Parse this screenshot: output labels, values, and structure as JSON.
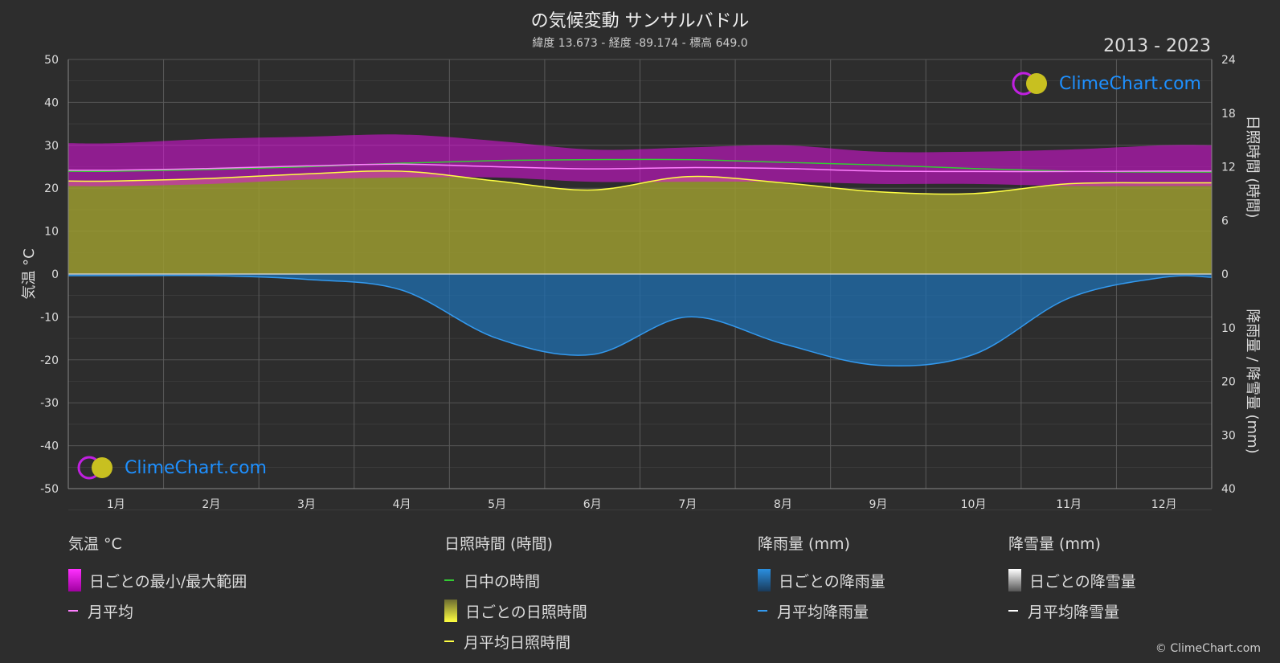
{
  "header": {
    "title": "の気候変動 サンサルバドル",
    "subtitle": "緯度 13.673 - 経度 -89.174 - 標高 649.0",
    "year_range": "2013 - 2023"
  },
  "logo": {
    "text": "ClimeChart.com"
  },
  "copyright": "© ClimeChart.com",
  "colors": {
    "background": "#2d2d2d",
    "temp_range": "#e010e0",
    "temp_avg": "#ff80ff",
    "daylight": "#33cc33",
    "sunshine_fill": "#9b9b30",
    "sunshine_line": "#ffff44",
    "rain_fill": "#1f6fb0",
    "rain_line": "#3399ee",
    "snow_line": "#ffffff",
    "logo": "#1e90ff"
  },
  "chart_data": {
    "type": "line",
    "months": [
      "1月",
      "2月",
      "3月",
      "4月",
      "5月",
      "6月",
      "7月",
      "8月",
      "9月",
      "10月",
      "11月",
      "12月"
    ],
    "y_left": {
      "label": "気温 °C",
      "ylim": [
        -50,
        50
      ],
      "ticks": [
        50,
        40,
        30,
        20,
        10,
        0,
        -10,
        -20,
        -30,
        -40,
        -50
      ]
    },
    "y_right_top": {
      "label": "日照時間 (時間)",
      "ylim": [
        0,
        24
      ],
      "ticks": [
        24,
        18,
        12,
        6,
        0
      ]
    },
    "y_right_bottom": {
      "label": "降雨量 / 降雪量 (mm)",
      "ylim": [
        0,
        40
      ],
      "ticks": [
        0,
        10,
        20,
        30,
        40
      ]
    },
    "series": [
      {
        "name": "日ごとの最小/最大範囲",
        "axis": "temp",
        "type": "band",
        "min": [
          20.5,
          21.0,
          22.0,
          22.5,
          22.5,
          21.5,
          21.5,
          21.5,
          21.0,
          21.0,
          20.5,
          20.5
        ],
        "max": [
          30.5,
          31.5,
          32.0,
          32.5,
          31.0,
          29.0,
          29.5,
          30.0,
          28.5,
          28.5,
          29.0,
          30.0
        ]
      },
      {
        "name": "月平均",
        "axis": "temp",
        "type": "line",
        "values": [
          24.2,
          24.6,
          25.2,
          25.6,
          25.0,
          24.5,
          24.8,
          24.6,
          24.0,
          23.9,
          23.9,
          24.0
        ]
      },
      {
        "name": "日中の時間",
        "axis": "sun",
        "type": "line",
        "values": [
          11.5,
          11.7,
          12.0,
          12.4,
          12.7,
          12.8,
          12.8,
          12.5,
          12.2,
          11.8,
          11.5,
          11.4
        ]
      },
      {
        "name": "月平均日照時間",
        "axis": "sun",
        "type": "line",
        "values": [
          10.4,
          10.7,
          11.2,
          11.5,
          10.4,
          9.4,
          10.9,
          10.2,
          9.2,
          9.0,
          10.1,
          10.2
        ]
      },
      {
        "name": "月平均降雨量",
        "axis": "precip",
        "type": "line",
        "values": [
          0.3,
          0.3,
          1.0,
          3.0,
          12.0,
          15.0,
          8.0,
          13.0,
          17.0,
          15.0,
          4.5,
          0.6
        ]
      },
      {
        "name": "月平均降雪量",
        "axis": "precip",
        "type": "line",
        "values": [
          0,
          0,
          0,
          0,
          0,
          0,
          0,
          0,
          0,
          0,
          0,
          0
        ]
      }
    ]
  },
  "legend": {
    "temp": {
      "header": "気温 °C",
      "items": [
        "日ごとの最小/最大範囲",
        "月平均"
      ]
    },
    "sun": {
      "header": "日照時間 (時間)",
      "items": [
        "日中の時間",
        "日ごとの日照時間",
        "月平均日照時間"
      ]
    },
    "rain": {
      "header": "降雨量 (mm)",
      "items": [
        "日ごとの降雨量",
        "月平均降雨量"
      ]
    },
    "snow": {
      "header": "降雪量 (mm)",
      "items": [
        "日ごとの降雪量",
        "月平均降雪量"
      ]
    }
  }
}
